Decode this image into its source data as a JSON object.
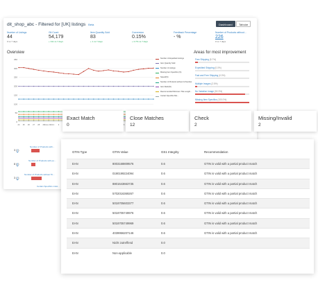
{
  "dashboard": {
    "title": "dit_shop_abc - Filtered for [UK] listings",
    "beta_label": "Beta",
    "toggle_dashboard": "Dashboard",
    "toggle_tabular": "Tabular",
    "kpis": [
      {
        "label": "Number of Listings",
        "value": "44",
        "delta": "0 vs 7 days",
        "delta_kind": "neutral"
      },
      {
        "label": "Glt Count",
        "value": "54,179",
        "delta": "+ 311 vs 7 days",
        "delta_kind": "up"
      },
      {
        "label": "Item Quantity Sold",
        "value": "83",
        "delta": "+ 1 vs 7 days",
        "delta_kind": "up"
      },
      {
        "label": "Conversion",
        "value": "0.15%",
        "delta": "+ 0.7% vs 7 days",
        "delta_kind": "up"
      },
      {
        "label": "Feedback Percentage",
        "value": "- %",
        "delta": "",
        "delta_kind": "neutral"
      },
      {
        "label": "Number of Products without...",
        "value": "226",
        "delta": "0 vs 7 days",
        "delta_kind": "neutral"
      }
    ],
    "overview_title": "Overview",
    "areas_title": "Areas for most improvement",
    "areas": [
      {
        "label": "Free Shipping",
        "pct": "(5.7%)",
        "fill": 0.057
      },
      {
        "label": "Expedited Shipping",
        "pct": "(0.0%)",
        "fill": 0.0
      },
      {
        "label": "Fast and Free Shipping",
        "pct": "(0.0%)",
        "fill": 0.0
      },
      {
        "label": "Multiple Images",
        "pct": "(2.5%)",
        "fill": 0.025
      },
      {
        "label": "No Variation Image",
        "pct": "(92.3%)",
        "fill": 0.923
      },
      {
        "label": "Missing Item Specifics",
        "pct": "(100.0%)",
        "fill": 1.0
      }
    ],
    "lower": {
      "label_a": "Number of Products with...",
      "label_b": "Number of Products with po...",
      "label_c": "Number of Products without Tit...",
      "label_d": "Certain Specifics missi...",
      "val_a": "3",
      "val_b": "8",
      "val_c": "3",
      "bar_a": 0.2,
      "bar_b": 0.1,
      "bar_c": 0.25,
      "gauge_a": "25%",
      "gauge_b": "42%"
    }
  },
  "chart_data": {
    "type": "line",
    "x": [
      "24",
      "25",
      "26",
      "27",
      "28",
      "29",
      "June 2021",
      "2",
      "3",
      "4",
      "5",
      "6",
      "7",
      "8",
      "9",
      "10",
      "11",
      "12",
      "13",
      "14",
      "15",
      "16",
      "17",
      "18",
      "19",
      "20",
      "21",
      "22"
    ],
    "ylim": [
      0,
      350
    ],
    "yticks": [
      0,
      50,
      100,
      150,
      200,
      250,
      300,
      350
    ],
    "series": [
      {
        "name": "Number of Expedited Listings",
        "color": "#c0392b",
        "values": [
          305,
          305,
          300,
          295,
          290,
          286,
          282,
          280,
          276,
          272,
          270,
          268,
          266,
          283,
          300,
          290,
          285,
          288,
          292,
          286,
          284,
          280,
          282,
          290,
          295,
          298,
          301,
          302
        ]
      },
      {
        "name": "Item Quantity Sold",
        "color": "#7b6fb0",
        "values": [
          200,
          200,
          200,
          200,
          200,
          200,
          200,
          200,
          200,
          200,
          200,
          200,
          200,
          200,
          200,
          200,
          200,
          200,
          200,
          200,
          200,
          200,
          200,
          200,
          200,
          200,
          200,
          200
        ]
      },
      {
        "name": "Number of Listings",
        "color": "#2e86c1",
        "values": [
          128,
          128,
          128,
          128,
          128,
          128,
          128,
          128,
          128,
          128,
          128,
          128,
          128,
          128,
          128,
          128,
          128,
          128,
          128,
          128,
          128,
          128,
          128,
          128,
          128,
          128,
          128,
          128
        ]
      },
      {
        "name": "Missing Item Specifics (%)",
        "color": "#27ae60",
        "values": [
          58,
          58,
          58,
          58,
          58,
          58,
          58,
          58,
          58,
          58,
          58,
          58,
          58,
          58,
          58,
          58,
          58,
          58,
          58,
          58,
          58,
          58,
          58,
          58,
          58,
          58,
          58,
          58
        ]
      },
      {
        "name": "Speed(%)",
        "color": "#e67e22",
        "values": [
          42,
          42,
          42,
          42,
          42,
          42,
          42,
          42,
          42,
          42,
          42,
          42,
          42,
          42,
          42,
          42,
          42,
          42,
          42,
          42,
          42,
          42,
          42,
          42,
          42,
          42,
          42,
          42
        ]
      },
      {
        "name": "Number of Products without Gt Number",
        "color": "#16a085",
        "values": [
          30,
          30,
          30,
          30,
          30,
          30,
          30,
          30,
          30,
          30,
          30,
          30,
          30,
          30,
          30,
          30,
          30,
          30,
          30,
          30,
          30,
          30,
          30,
          30,
          30,
          30,
          30,
          30
        ]
      },
      {
        "name": "Item Rank(%)",
        "color": "#8e44ad",
        "values": [
          22,
          22,
          22,
          22,
          22,
          22,
          22,
          22,
          22,
          22,
          22,
          22,
          22,
          22,
          22,
          22,
          22,
          22,
          22,
          22,
          22,
          22,
          22,
          22,
          22,
          22,
          22,
          22
        ]
      },
      {
        "name": "Recommended Minimum Title Length...",
        "color": "#d4ac0d",
        "values": [
          12,
          12,
          12,
          12,
          12,
          12,
          12,
          12,
          12,
          12,
          12,
          12,
          12,
          12,
          12,
          12,
          12,
          12,
          12,
          12,
          12,
          12,
          12,
          12,
          12,
          12,
          12,
          12
        ]
      },
      {
        "name": "Certain Specifics Mis...",
        "color": "#95a5a6",
        "values": [
          6,
          6,
          6,
          6,
          6,
          6,
          6,
          6,
          6,
          6,
          6,
          6,
          6,
          6,
          6,
          6,
          6,
          6,
          6,
          6,
          6,
          6,
          6,
          6,
          6,
          6,
          6,
          6
        ]
      }
    ]
  },
  "match_cards": [
    {
      "title": "Exact Match",
      "value": "0"
    },
    {
      "title": "Close Matches",
      "value": "12"
    },
    {
      "title": "Check",
      "value": "2"
    },
    {
      "title": "Missing/Invalid",
      "value": "2"
    }
  ],
  "gtin_table": {
    "headers": [
      "GTIN Type",
      "GTIN Value",
      "GS1 Integrity",
      "Recommendation"
    ],
    "rows": [
      [
        "EAN",
        "8003168809576",
        "0.6",
        "GTIN is valid with a partial product match"
      ],
      [
        "EAN",
        "0190199224094",
        "0.6",
        "GTIN is valid with a partial product match"
      ],
      [
        "EAN",
        "8801643663735",
        "0.6",
        "GTIN is valid with a partial product match"
      ],
      [
        "EAN",
        "5702016369267",
        "0.6",
        "GTIN is valid with a partial product match"
      ],
      [
        "EAN",
        "5018705603377",
        "0.6",
        "GTIN is valid with a partial product match"
      ],
      [
        "EAN",
        "5018705749976",
        "0.6",
        "GTIN is valid with a partial product match"
      ],
      [
        "EAN",
        "5018705749969",
        "0.6",
        "GTIN is valid with a partial product match"
      ],
      [
        "EAN",
        "4039956207146",
        "0.6",
        "GTIN is valid with a partial product match"
      ],
      [
        "EAN",
        "Nicht zutreffend",
        "0.0",
        ""
      ],
      [
        "EAN",
        "Non-applicable",
        "0.0",
        ""
      ]
    ]
  }
}
